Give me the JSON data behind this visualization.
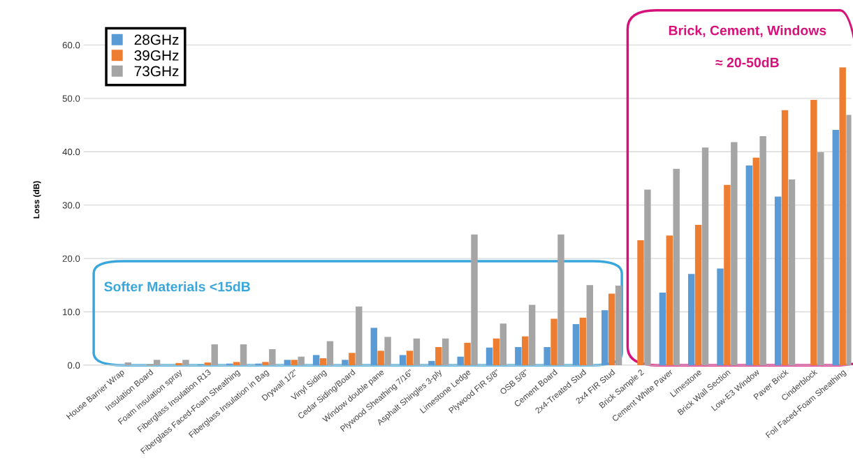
{
  "chart_data": {
    "type": "bar",
    "categories": [
      "House Barrier Wrap",
      "Insulation Board",
      "Foam insulation spray",
      "Fiberglass Insulation R13",
      "Fiberglass Faced-Foam Sheathing",
      "Fiberglass Insulation in Bag",
      "Drywall 1/2\"",
      "Vinyl Siding",
      "Cedar Siding/Board",
      "Window double pane",
      "Plywood Sheathing 7/16\"",
      "Asphalt Shingles 3-ply",
      "Limestone Ledge",
      "Plywood FIR 5/8\"",
      "OSB 5/8\"",
      "Cement Board",
      "2x4-Treated Stud",
      "2x4 FIR Stud",
      "Brick Sample 2",
      "Cement White Paver",
      "Limestone",
      "Brick Wall Section",
      "Low-E3 Window",
      "Paver Brick",
      "Cinderblock",
      "Foil Faced-Foam Sheathing"
    ],
    "series": [
      {
        "name": "28GHz",
        "color": "#5b9bd5",
        "values": [
          0,
          0,
          0,
          0.1,
          0.3,
          0.3,
          1.0,
          1.9,
          1.0,
          7.0,
          1.9,
          0.8,
          1.6,
          3.3,
          3.4,
          3.4,
          7.7,
          10.3,
          null,
          13.6,
          17.1,
          18.1,
          37.4,
          31.6,
          null,
          44.1
        ]
      },
      {
        "name": "39GHz",
        "color": "#ed7d31",
        "values": [
          0,
          0.1,
          0.4,
          0.5,
          0.6,
          0.6,
          1.0,
          1.3,
          2.3,
          2.7,
          2.7,
          3.4,
          4.2,
          5.0,
          5.4,
          8.7,
          8.9,
          13.4,
          23.4,
          24.3,
          26.3,
          33.8,
          38.9,
          47.8,
          49.7,
          55.8
        ]
      },
      {
        "name": "73GHz",
        "color": "#a5a5a5",
        "values": [
          0.5,
          1.0,
          1.0,
          3.9,
          3.9,
          3.0,
          1.6,
          4.5,
          11.0,
          5.3,
          5.0,
          5.0,
          24.5,
          7.8,
          11.3,
          24.5,
          15.0,
          14.9,
          32.9,
          36.8,
          40.8,
          41.8,
          42.9,
          34.8,
          39.9,
          46.9
        ]
      }
    ],
    "ylabel": "Loss (dB)",
    "ylim": [
      0,
      62
    ],
    "yticks": [
      {
        "value": 0,
        "label": "0.0"
      },
      {
        "value": 10,
        "label": "10.0"
      },
      {
        "value": 20,
        "label": "20.0"
      },
      {
        "value": 30,
        "label": "30.0"
      },
      {
        "value": 40,
        "label": "40.0"
      },
      {
        "value": 50,
        "label": "50.0"
      },
      {
        "value": 60,
        "label": "60.0"
      }
    ],
    "grid": "y",
    "legend": "top left",
    "annotations": [
      "Softer Materials <15dB",
      "Brick, Cement, Windows",
      "≈ 20-50dB"
    ]
  }
}
